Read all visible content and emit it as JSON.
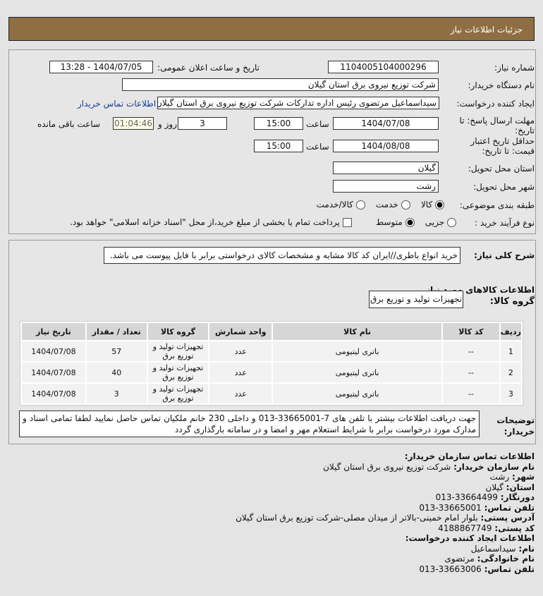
{
  "header": {
    "title": "جزئیات اطلاعات نیاز"
  },
  "form": {
    "need_number_label": "شماره نیاز:",
    "need_number": "1104005104000296",
    "announce_label": "تاریخ و ساعت اعلان عمومی:",
    "announce_value": "1404/07/05 - 13:28",
    "buyer_label": "نام دستگاه خریدار:",
    "buyer": "شرکت توزیع نیروی برق استان گیلان",
    "creator_label": "ایجاد کننده درخواست:",
    "creator": "سیداسماعیل مرتضوی رئیس اداره تدارکات شرکت توزیع نیروی برق استان گیلان",
    "contact_link": "اطلاعات تماس خریدار",
    "deadline_label_1": "مهلت ارسال پاسخ: تا",
    "deadline_label_2": "تاریخ:",
    "deadline_date": "1404/07/08",
    "time_label": "ساعت",
    "deadline_time": "15:00",
    "days": "3",
    "days_label": "روز و",
    "remaining": "01:04:46",
    "remaining_label": "ساعت باقی مانده",
    "validity_label_1": "حداقل تاریخ اعتبار",
    "validity_label_2": "قیمت: تا تاریخ:",
    "validity_date": "1404/08/08",
    "validity_time": "15:00",
    "province_label": "استان محل تحویل:",
    "province": "گیلان",
    "city_label": "شهر محل تحویل:",
    "city": "رشت",
    "category_label": "طبقه بندی موضوعی:",
    "category_options": [
      "کالا",
      "خدمت",
      "کالا/خدمت"
    ],
    "category_selected": "کالا",
    "process_label": "نوع فرآیند خرید :",
    "process_options": [
      "جزیی",
      "متوسط"
    ],
    "process_selected": "متوسط",
    "payment_note": "پرداخت تمام یا بخشی از مبلغ خرید،از محل \"اسناد خزانه اسلامی\" خواهد بود."
  },
  "details": {
    "summary_label": "شرح کلی نیاز:",
    "summary": "خرید انواع باطری//ایران کد کالا مشابه و مشخصات کالای درخواستی برابر با فایل پیوست می باشد.",
    "goods_heading": "اطلاعات کالاهای مورد نیاز",
    "group_label": "گروه کالا:",
    "group": "تجهیزات تولید و توزیع برق",
    "table": {
      "headers": [
        "ردیف",
        "کد کالا",
        "نام کالا",
        "واحد شمارش",
        "گروه کالا",
        "تعداد / مقدار",
        "تاریخ نیاز"
      ],
      "rows": [
        [
          "1",
          "--",
          "باتری لیتیومی",
          "عدد",
          "تجهیزات تولید و توزیع برق",
          "57",
          "1404/07/08"
        ],
        [
          "2",
          "--",
          "باتری لیتیومی",
          "عدد",
          "تجهیزات تولید و توزیع برق",
          "40",
          "1404/07/08"
        ],
        [
          "3",
          "--",
          "باتری لیتیومی",
          "عدد",
          "تجهیزات تولید و توزیع برق",
          "3",
          "1404/07/08"
        ]
      ]
    },
    "notes_label": "توضیحات خریدار:",
    "notes": "جهت دریافت اطلاعات بیشتر با تلفن های 7-33665001-013 و داخلی 230 خانم ملکیان تماس حاصل نمایید لطفا تمامی اسناد و مدارک مورد درخواست برابر با شرایط استعلام مهر و امضا و در سامانه بارگذاری گردد"
  },
  "contact": {
    "heading": "اطلاعات تماس سازمان خریدار:",
    "org_label": "نام سازمان خریدار:",
    "org": "شرکت توزیع نیروی برق استان گیلان",
    "city_label": "شهر:",
    "city": "رشت",
    "province_label": "استان:",
    "province": "گیلان",
    "fax_label": "دورنگار:",
    "fax": "33664499-013",
    "phone_label": "تلفن تماس:",
    "phone": "33665001-013",
    "address_label": "آدرس پستی:",
    "address": "بلوار امام خمینی-بالاتر از میدان مصلی-شرکت توزیع برق استان گیلان",
    "postal_label": "کد پستی:",
    "postal": "4188867749",
    "creator_heading": "اطلاعات ایجاد کننده درخواست:",
    "name_label": "نام:",
    "name": "سیداسماعیل",
    "family_label": "نام خانوادگی:",
    "family": "مرتضوی",
    "creator_phone_label": "تلفن تماس:",
    "creator_phone": "33663006-013"
  }
}
